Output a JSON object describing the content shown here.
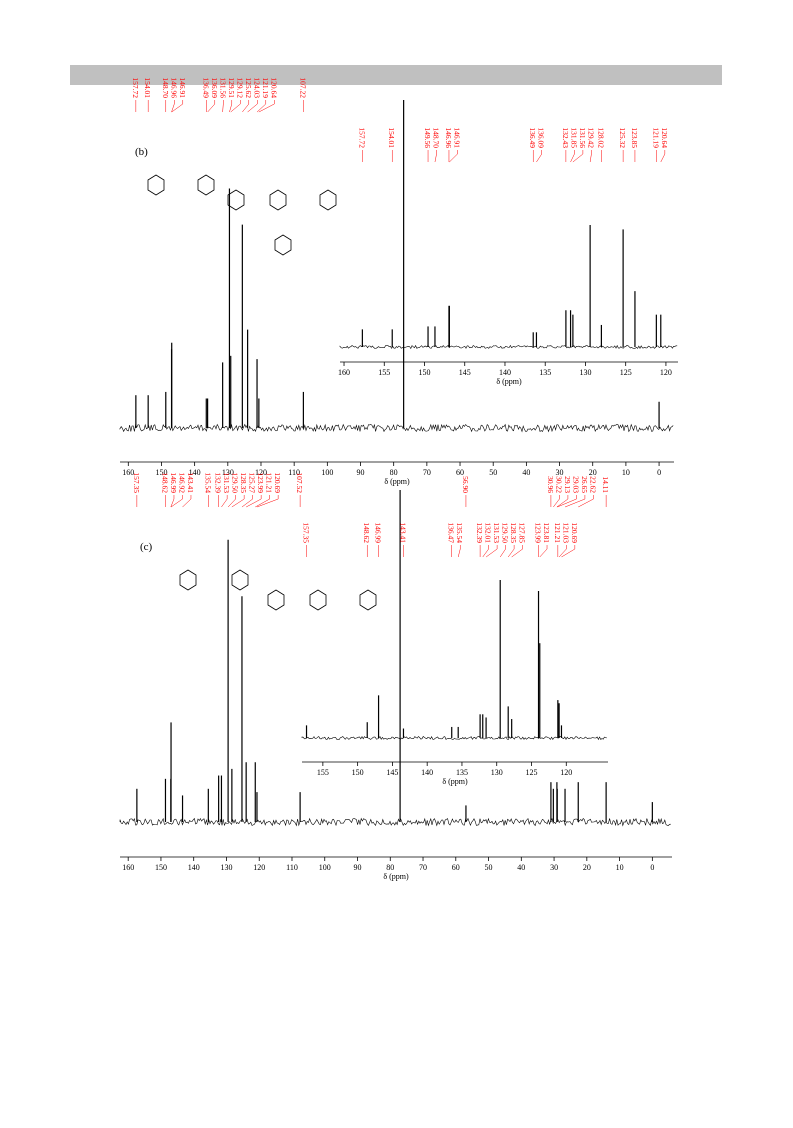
{
  "chart_data": [
    {
      "type": "spectrum",
      "panel": "(b)",
      "xlabel": "δ (ppm)",
      "xlim": [
        162.5,
        -4.5
      ],
      "ylim": [
        0,
        100
      ],
      "xticks": [
        160,
        150,
        140,
        130,
        120,
        110,
        100,
        90,
        80,
        70,
        60,
        50,
        40,
        30,
        20,
        10,
        0
      ],
      "color": "#000000",
      "label_color": "#ff0000",
      "x": [
        157.72,
        154.01,
        148.7,
        146.96,
        146.91,
        136.49,
        136.09,
        131.56,
        129.51,
        129.12,
        125.62,
        124.03,
        121.19,
        120.64,
        107.22,
        77.0,
        0.0
      ],
      "values": [
        10,
        10,
        11,
        24,
        26,
        9,
        9,
        20,
        73,
        22,
        62,
        30,
        21,
        9,
        11,
        100,
        8
      ],
      "peak_labels": [
        "157.72",
        "154.01",
        "148.70",
        "146.96",
        "146.91",
        "136.49",
        "136.09",
        "131.56",
        "129.51",
        "129.12",
        "125.62",
        "124.03",
        "121.19",
        "120.64",
        "107.22",
        null,
        null
      ]
    },
    {
      "type": "spectrum",
      "xlabel": "δ (ppm)",
      "xlim": [
        160.5,
        118.5
      ],
      "ylim": [
        0,
        100
      ],
      "xticks": [
        160,
        155,
        150,
        145,
        140,
        135,
        130,
        125,
        120
      ],
      "color": "#000000",
      "label_color": "#ff0000",
      "x": [
        157.72,
        154.01,
        149.56,
        148.7,
        146.96,
        146.91,
        136.49,
        136.09,
        132.43,
        131.85,
        131.56,
        129.42,
        128.02,
        125.32,
        123.85,
        121.19,
        120.64
      ],
      "values": [
        12,
        12,
        14,
        14,
        28,
        28,
        10,
        10,
        25,
        25,
        22,
        83,
        15,
        80,
        38,
        22,
        22
      ],
      "peak_labels": [
        "157.72",
        "154.01",
        "149.56",
        "148.70",
        "146.96",
        "146.91",
        "136.49",
        "136.09",
        "132.43",
        "131.85",
        "131.56",
        "129.42",
        "128.02",
        "125.32",
        "123.85",
        "121.19",
        "120.64"
      ]
    },
    {
      "type": "spectrum",
      "panel": "(c)",
      "xlabel": "δ (ppm)",
      "xlim": [
        162.5,
        -6
      ],
      "ylim": [
        0,
        100
      ],
      "xticks": [
        160,
        150,
        140,
        130,
        120,
        110,
        100,
        90,
        80,
        70,
        60,
        50,
        40,
        30,
        20,
        10,
        0
      ],
      "color": "#000000",
      "label_color": "#ff0000",
      "x": [
        157.35,
        148.62,
        146.99,
        146.92,
        143.41,
        135.54,
        132.39,
        131.53,
        129.5,
        128.35,
        125.27,
        123.99,
        121.21,
        120.69,
        107.52,
        77.0,
        56.9,
        30.96,
        30.22,
        29.13,
        29.03,
        26.65,
        22.62,
        14.11,
        0.0
      ],
      "values": [
        10,
        13,
        13,
        30,
        8,
        10,
        14,
        14,
        85,
        16,
        68,
        18,
        18,
        9,
        9,
        100,
        5,
        12,
        10,
        12,
        10,
        10,
        12,
        12,
        6
      ],
      "peak_labels": [
        "157.35",
        "148.62",
        "146.99",
        "146.92",
        "143.41",
        "135.54",
        "132.39",
        "131.53",
        "129.50",
        "128.35",
        "125.27",
        "123.99",
        "121.21",
        "120.69",
        "107.52",
        null,
        "56.90",
        "30.96",
        "30.22",
        "29.13",
        "29.03",
        "26.65",
        "22.62",
        "14.11",
        null
      ]
    },
    {
      "type": "spectrum",
      "xlabel": "δ (ppm)",
      "xlim": [
        158,
        114
      ],
      "ylim": [
        0,
        100
      ],
      "xticks": [
        155,
        150,
        145,
        140,
        135,
        130,
        125,
        120
      ],
      "color": "#000000",
      "label_color": "#ff0000",
      "x": [
        157.35,
        148.62,
        146.99,
        143.41,
        136.47,
        135.54,
        132.39,
        132.01,
        131.53,
        129.5,
        128.35,
        127.85,
        123.99,
        123.81,
        121.21,
        121.03,
        120.69
      ],
      "values": [
        8,
        10,
        27,
        6,
        7,
        7,
        15,
        15,
        13,
        100,
        20,
        12,
        93,
        60,
        24,
        22,
        8
      ],
      "peak_labels": [
        "157.35",
        "148.62",
        "146.99",
        "143.41",
        "136.47",
        "135.54",
        "132.39",
        "132.01",
        "131.53",
        "129.50",
        "128.35",
        "127.85",
        "123.99",
        "123.81",
        "121.21",
        "121.03",
        "120.69"
      ]
    }
  ]
}
